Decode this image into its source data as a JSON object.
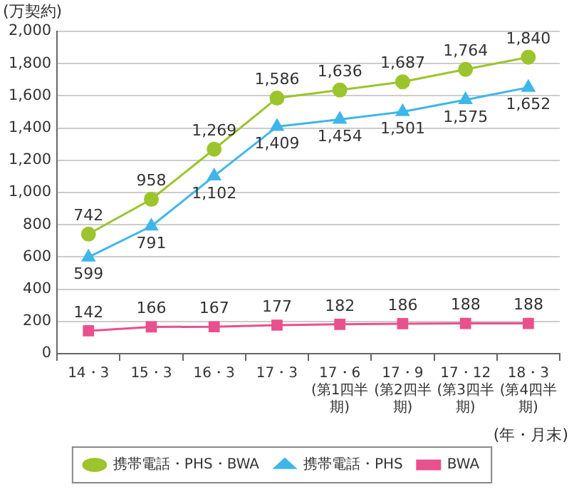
{
  "chart_data": {
    "type": "line",
    "ylabel": "(万契約)",
    "xlabel": "(年・月末)",
    "categories": [
      "14・3",
      "15・3",
      "16・3",
      "17・3",
      "17・6\n(第1四半期)",
      "17・9\n(第2四半期)",
      "17・12\n(第3四半期)",
      "18・3\n(第4四半期)"
    ],
    "series": [
      {
        "name": "携帯電話・PHS・BWA",
        "color": "#9cc42c",
        "marker": "circle",
        "values": [
          742,
          958,
          1269,
          1586,
          1636,
          1687,
          1764,
          1840
        ],
        "value_labels": [
          "742",
          "958",
          "1,269",
          "1,586",
          "1,636",
          "1,687",
          "1,764",
          "1,840"
        ]
      },
      {
        "name": "携帯電話・PHS",
        "color": "#3fb6ea",
        "marker": "triangle",
        "values": [
          599,
          791,
          1102,
          1409,
          1454,
          1501,
          1575,
          1652
        ],
        "value_labels": [
          "599",
          "791",
          "1,102",
          "1,409",
          "1,454",
          "1,501",
          "1,575",
          "1,652"
        ]
      },
      {
        "name": "BWA",
        "color": "#e9508e",
        "marker": "square",
        "values": [
          142,
          166,
          167,
          177,
          182,
          186,
          188,
          188
        ],
        "value_labels": [
          "142",
          "166",
          "167",
          "177",
          "182",
          "186",
          "188",
          "188"
        ]
      }
    ],
    "ylim": [
      0,
      2000
    ],
    "yticks": [
      0,
      {
        "value": 200,
        "label": "200"
      },
      {
        "value": 400,
        "label": "400"
      },
      {
        "value": 600,
        "label": "600"
      },
      {
        "value": 800,
        "label": "800"
      },
      {
        "value": 1000,
        "label": "1,000"
      },
      {
        "value": 1200,
        "label": "1,200"
      },
      {
        "value": 1400,
        "label": "1,400"
      },
      {
        "value": 1600,
        "label": "1,600"
      },
      {
        "value": 1800,
        "label": "1,800"
      },
      {
        "value": 2000,
        "label": "2,000"
      }
    ],
    "grid": "y",
    "legend": "bottom"
  }
}
